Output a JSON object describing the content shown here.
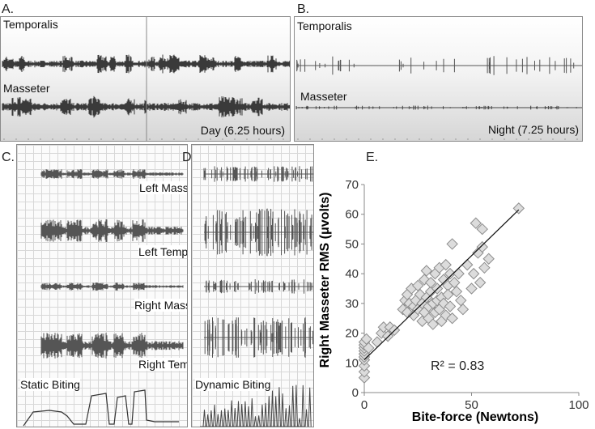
{
  "panels": {
    "a": {
      "letter": "A.",
      "top_label": "Temporalis",
      "bottom_label": "Masseter",
      "period": "Day (6.25 hours)"
    },
    "b": {
      "letter": "B.",
      "top_label": "Temporalis",
      "bottom_label": "Masseter",
      "period": "Night (7.25 hours)"
    },
    "c": {
      "letter": "C.",
      "labels": [
        "Left Masseter",
        "Left Temporalis",
        "Right Masseter",
        "Right Temporalis"
      ],
      "mode": "Static Biting"
    },
    "d": {
      "letter": "D.",
      "mode": "Dynamic Biting"
    },
    "e": {
      "letter": "E."
    }
  },
  "chart_data": {
    "type": "scatter",
    "xlabel": "Bite-force (Newtons)",
    "ylabel": "Right Masseter RMS (μvolts)",
    "xlim": [
      0,
      100
    ],
    "ylim": [
      0,
      70
    ],
    "xticks": [
      "0",
      "50",
      "100"
    ],
    "yticks": [
      "0",
      "10",
      "20",
      "30",
      "40",
      "50",
      "60",
      "70"
    ],
    "annotation": "R² = 0.83",
    "trendline": {
      "x": [
        0,
        72
      ],
      "y": [
        11,
        61.5
      ]
    },
    "points": [
      [
        0,
        5
      ],
      [
        0,
        7
      ],
      [
        0,
        9
      ],
      [
        0,
        11
      ],
      [
        0,
        12
      ],
      [
        0,
        13
      ],
      [
        0,
        14
      ],
      [
        0,
        15
      ],
      [
        0,
        16
      ],
      [
        0,
        17
      ],
      [
        1,
        18
      ],
      [
        2,
        15
      ],
      [
        6,
        17
      ],
      [
        8,
        20
      ],
      [
        9,
        22
      ],
      [
        11,
        19
      ],
      [
        12,
        22
      ],
      [
        14,
        21
      ],
      [
        18,
        28
      ],
      [
        19,
        31
      ],
      [
        20,
        27
      ],
      [
        20,
        33
      ],
      [
        21,
        30
      ],
      [
        22,
        35
      ],
      [
        23,
        29
      ],
      [
        23,
        26
      ],
      [
        24,
        31
      ],
      [
        25,
        36
      ],
      [
        25,
        28
      ],
      [
        26,
        33
      ],
      [
        27,
        24
      ],
      [
        27,
        30
      ],
      [
        28,
        38
      ],
      [
        28,
        27
      ],
      [
        29,
        32
      ],
      [
        29,
        41
      ],
      [
        30,
        25
      ],
      [
        30,
        29
      ],
      [
        31,
        34
      ],
      [
        31,
        37
      ],
      [
        32,
        30
      ],
      [
        32,
        23
      ],
      [
        33,
        27
      ],
      [
        33,
        40
      ],
      [
        34,
        31
      ],
      [
        34,
        35
      ],
      [
        35,
        28
      ],
      [
        35,
        42
      ],
      [
        36,
        32
      ],
      [
        36,
        24
      ],
      [
        37,
        38
      ],
      [
        37,
        30
      ],
      [
        38,
        26
      ],
      [
        38,
        43
      ],
      [
        39,
        36
      ],
      [
        39,
        33
      ],
      [
        40,
        29
      ],
      [
        40,
        40
      ],
      [
        41,
        50
      ],
      [
        41,
        25
      ],
      [
        42,
        37
      ],
      [
        43,
        34
      ],
      [
        44,
        40
      ],
      [
        45,
        31
      ],
      [
        46,
        28
      ],
      [
        48,
        43
      ],
      [
        50,
        35
      ],
      [
        51,
        40
      ],
      [
        52,
        57
      ],
      [
        53,
        47
      ],
      [
        54,
        37
      ],
      [
        55,
        49
      ],
      [
        55,
        55
      ],
      [
        56,
        42
      ],
      [
        58,
        45
      ],
      [
        72,
        62
      ]
    ]
  }
}
